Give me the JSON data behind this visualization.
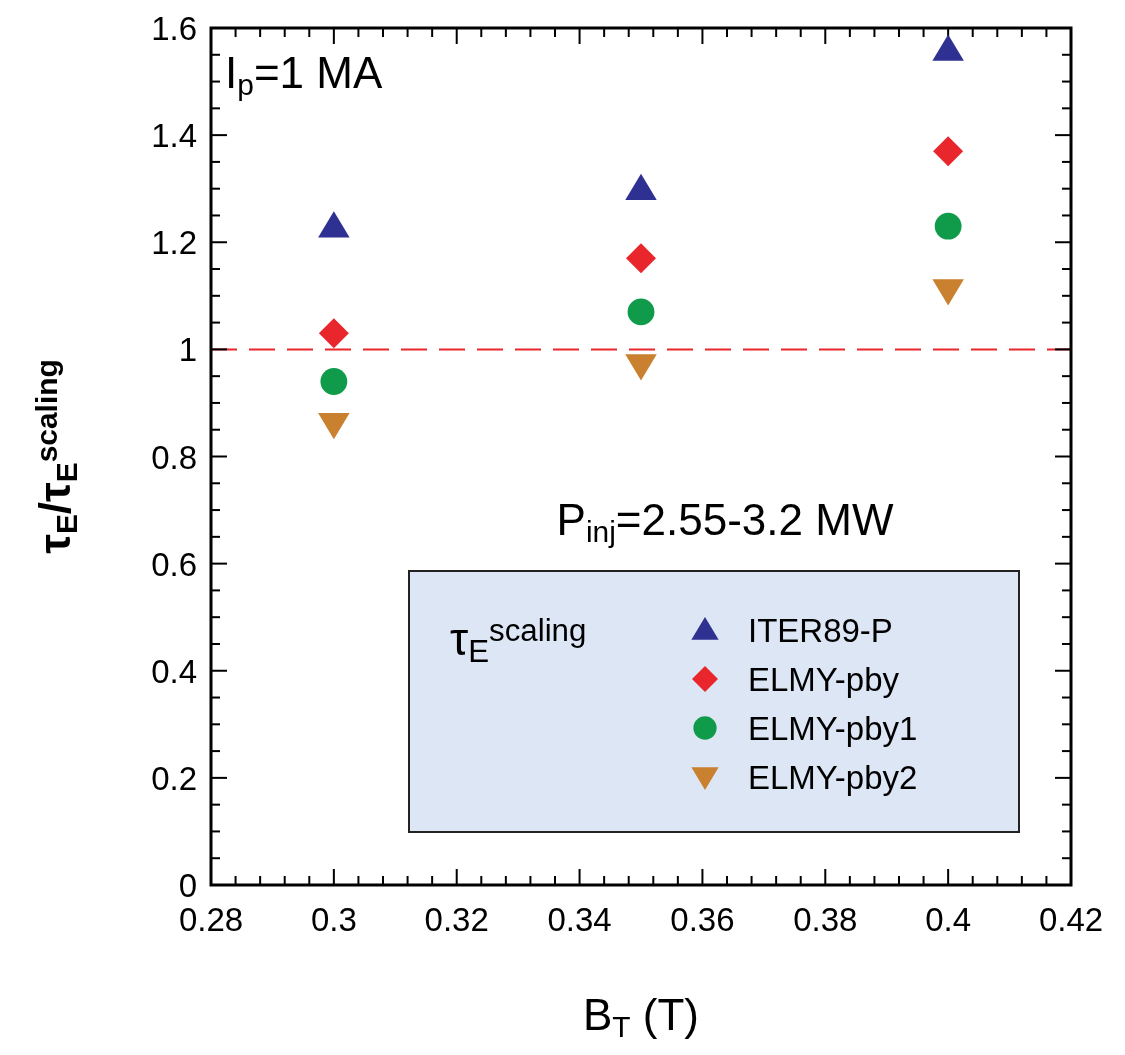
{
  "chart_data": {
    "type": "scatter",
    "xlabel": "B$_{T}$ (T)",
    "ylabel": "τ$_{E}$/τ$_{E}$$^{scaling}$",
    "legend_title": "τ$_{E}$$^{scaling}$",
    "annotations": [
      "I$_{p}$=1 MA",
      "P$_{inj}$=2.55-3.2 MW"
    ],
    "x": [
      0.3,
      0.35,
      0.4
    ],
    "series": [
      {
        "name": "ITER89-P",
        "color": "#2e3192",
        "marker": "triangle",
        "values": [
          1.23,
          1.3,
          1.56
        ]
      },
      {
        "name": "ELMY-pby",
        "color": "#e8262b",
        "marker": "diamond",
        "values": [
          1.03,
          1.17,
          1.37
        ]
      },
      {
        "name": "ELMY-pby1",
        "color": "#0f9b4a",
        "marker": "circle",
        "values": [
          0.94,
          1.07,
          1.23
        ]
      },
      {
        "name": "ELMY-pby2",
        "color": "#c9802f",
        "marker": "triangle-down",
        "values": [
          0.86,
          0.97,
          1.11
        ]
      }
    ],
    "xlim": [
      0.28,
      0.42
    ],
    "xticks": [
      0.28,
      {
        "value": 0.284,
        "label": null
      },
      {
        "value": 0.288,
        "label": null
      },
      {
        "value": 0.292,
        "label": null
      },
      {
        "value": 0.296,
        "label": null
      },
      0.3,
      {
        "value": 0.304,
        "label": null
      },
      {
        "value": 0.308,
        "label": null
      },
      {
        "value": 0.312,
        "label": null
      },
      {
        "value": 0.316,
        "label": null
      },
      0.32,
      {
        "value": 0.324,
        "label": null
      },
      {
        "value": 0.328,
        "label": null
      },
      {
        "value": 0.332,
        "label": null
      },
      {
        "value": 0.336,
        "label": null
      },
      0.34,
      {
        "value": 0.344,
        "label": null
      },
      {
        "value": 0.348,
        "label": null
      },
      {
        "value": 0.352,
        "label": null
      },
      {
        "value": 0.356,
        "label": null
      },
      0.36,
      {
        "value": 0.364,
        "label": null
      },
      {
        "value": 0.368,
        "label": null
      },
      {
        "value": 0.372,
        "label": null
      },
      {
        "value": 0.376,
        "label": null
      },
      0.38,
      {
        "value": 0.384,
        "label": null
      },
      {
        "value": 0.388,
        "label": null
      },
      {
        "value": 0.392,
        "label": null
      },
      {
        "value": 0.396,
        "label": null
      },
      0.4,
      {
        "value": 0.404,
        "label": null
      },
      {
        "value": 0.408,
        "label": null
      },
      {
        "value": 0.412,
        "label": null
      },
      {
        "value": 0.416,
        "label": null
      },
      0.42
    ],
    "ylim": [
      0,
      1.6
    ],
    "yticks": [
      0,
      {
        "value": 0.05,
        "label": null
      },
      {
        "value": 0.1,
        "label": null
      },
      {
        "value": 0.15,
        "label": null
      },
      0.2,
      {
        "value": 0.25,
        "label": null
      },
      {
        "value": 0.3,
        "label": null
      },
      {
        "value": 0.35,
        "label": null
      },
      0.4,
      {
        "value": 0.45,
        "label": null
      },
      {
        "value": 0.5,
        "label": null
      },
      {
        "value": 0.55,
        "label": null
      },
      0.6,
      {
        "value": 0.65,
        "label": null
      },
      {
        "value": 0.7,
        "label": null
      },
      {
        "value": 0.75,
        "label": null
      },
      0.8,
      {
        "value": 0.85,
        "label": null
      },
      {
        "value": 0.9,
        "label": null
      },
      {
        "value": 0.95,
        "label": null
      },
      1,
      {
        "value": 1.05,
        "label": null
      },
      {
        "value": 1.1,
        "label": null
      },
      {
        "value": 1.15,
        "label": null
      },
      1.2,
      {
        "value": 1.25,
        "label": null
      },
      {
        "value": 1.3,
        "label": null
      },
      {
        "value": 1.35,
        "label": null
      },
      1.4,
      {
        "value": 1.45,
        "label": null
      },
      {
        "value": 1.5,
        "label": null
      },
      {
        "value": 1.55,
        "label": null
      },
      1.6
    ],
    "ref_lines": [
      {
        "axis": "y",
        "value": 1,
        "color": "#e8262b",
        "line_style": "dashed"
      }
    ],
    "legend": "bottom right",
    "grid": false
  }
}
